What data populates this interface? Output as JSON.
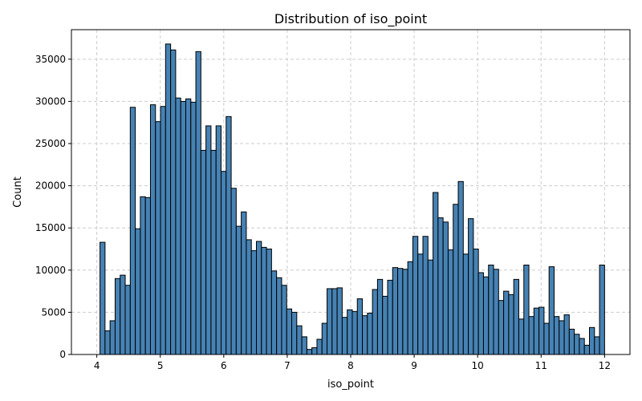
{
  "chart_data": {
    "type": "bar",
    "title": "Distribution of iso_point",
    "xlabel": "iso_point",
    "ylabel": "Count",
    "xlim": [
      3.6,
      12.4
    ],
    "ylim": [
      0,
      38500
    ],
    "xticks": [
      4,
      5,
      6,
      7,
      8,
      9,
      10,
      11,
      12
    ],
    "yticks": [
      0,
      5000,
      10000,
      15000,
      20000,
      25000,
      30000,
      35000
    ],
    "grid": true,
    "grid_style": "dashed",
    "bar_color": "#4682b4",
    "edge_color": "#000000",
    "bins": {
      "start": 4.05,
      "end": 12.0,
      "count": 100,
      "counts": [
        13300,
        2800,
        4000,
        9000,
        9400,
        8200,
        29300,
        14900,
        18700,
        18600,
        29600,
        27600,
        29400,
        36800,
        36100,
        30400,
        30000,
        30300,
        29900,
        35900,
        24200,
        27100,
        24200,
        27100,
        21700,
        28200,
        19700,
        15200,
        16900,
        13600,
        12300,
        13400,
        12700,
        12500,
        9900,
        9100,
        8200,
        5400,
        5000,
        3400,
        2100,
        600,
        800,
        1800,
        3700,
        7800,
        7800,
        7900,
        4400,
        5300,
        5100,
        6600,
        4600,
        4900,
        7700,
        8900,
        6900,
        8800,
        10300,
        10200,
        10100,
        11000,
        14000,
        11900,
        14000,
        11200,
        19200,
        16200,
        15700,
        12400,
        17800,
        20500,
        11900,
        16100,
        12500,
        9700,
        9200,
        10600,
        10100,
        6400,
        7500,
        7100,
        8900,
        4200,
        10600,
        4500,
        5500,
        5600,
        3700,
        10400,
        4500,
        4000,
        4700,
        3000,
        2400,
        1900,
        1100,
        3200,
        2100,
        10600
      ]
    }
  }
}
